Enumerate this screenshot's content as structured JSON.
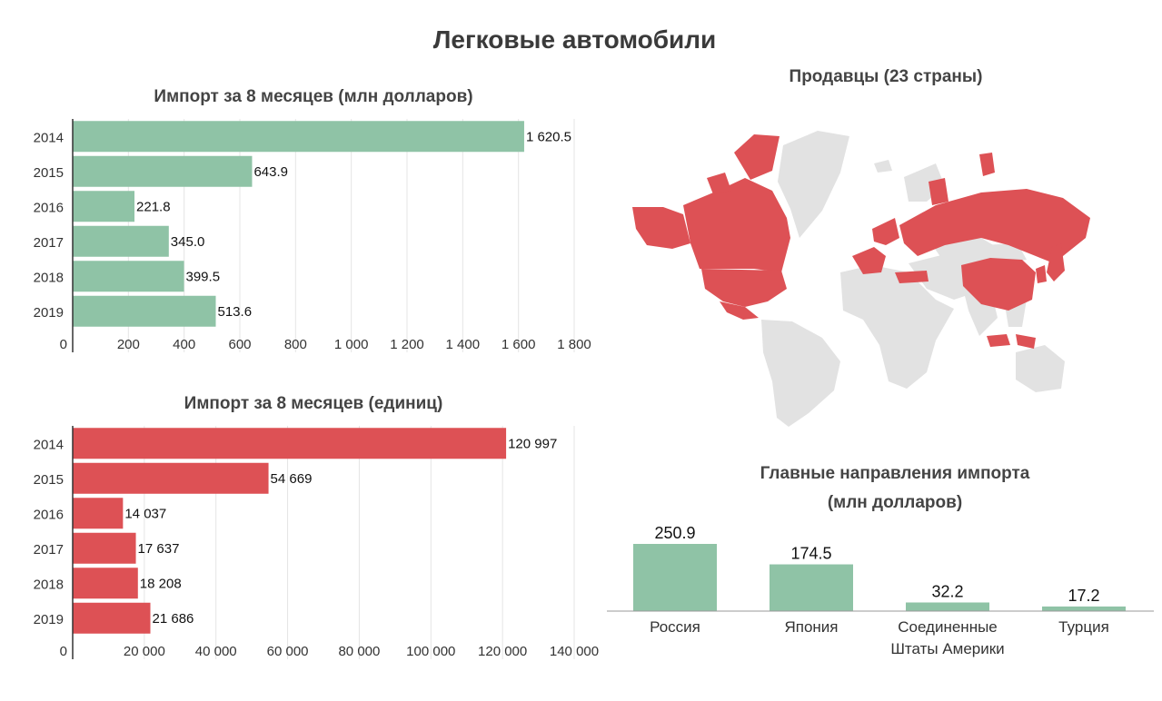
{
  "page_title": "Легковые автомобили",
  "colors": {
    "green": "#8fc3a6",
    "red": "#dd5155",
    "map_gray": "#e2e2e2",
    "grid": "#e5e5e5",
    "axis": "#333333"
  },
  "chart_data": [
    {
      "type": "bar",
      "orientation": "horizontal",
      "title": "Импорт за 8 месяцев (млн долларов)",
      "categories": [
        "2014",
        "2015",
        "2016",
        "2017",
        "2018",
        "2019"
      ],
      "values": [
        1620.5,
        643.9,
        221.8,
        345.0,
        399.5,
        513.6
      ],
      "value_labels": [
        "1 620.5",
        "643.9",
        "221.8",
        "345.0",
        "399.5",
        "513.6"
      ],
      "xlim": [
        0,
        1800
      ],
      "xticks": [
        0,
        200,
        400,
        600,
        800,
        1000,
        1200,
        1400,
        1600,
        1800
      ],
      "xtick_labels": [
        "0",
        "200",
        "400",
        "600",
        "800",
        "1 000",
        "1 200",
        "1 400",
        "1 600",
        "1 800"
      ],
      "grid": true,
      "color": "#8fc3a6"
    },
    {
      "type": "bar",
      "orientation": "horizontal",
      "title": "Импорт за 8 месяцев (единиц)",
      "categories": [
        "2014",
        "2015",
        "2016",
        "2017",
        "2018",
        "2019"
      ],
      "values": [
        120997,
        54669,
        14037,
        17637,
        18208,
        21686
      ],
      "value_labels": [
        "120 997",
        "54 669",
        "14 037",
        "17 637",
        "18 208",
        "21 686"
      ],
      "xlim": [
        0,
        140000
      ],
      "xticks": [
        0,
        20000,
        40000,
        60000,
        80000,
        100000,
        120000,
        140000
      ],
      "xtick_labels": [
        "0",
        "20 000",
        "40 000",
        "60 000",
        "80 000",
        "100 000",
        "120 000",
        "140 000"
      ],
      "grid": true,
      "color": "#dd5155"
    },
    {
      "type": "bar",
      "orientation": "vertical",
      "title": "Главные направления импорта\n(млн долларов)",
      "categories": [
        "Россия",
        "Япония",
        "Соединенные\nШтаты Америки",
        "Турция"
      ],
      "values": [
        250.9,
        174.5,
        32.2,
        17.2
      ],
      "value_labels": [
        "250.9",
        "174.5",
        "32.2",
        "17.2"
      ],
      "ylim": [
        0,
        250.9
      ],
      "color": "#8fc3a6"
    }
  ],
  "map": {
    "title": "Продавцы (23 страны)"
  }
}
